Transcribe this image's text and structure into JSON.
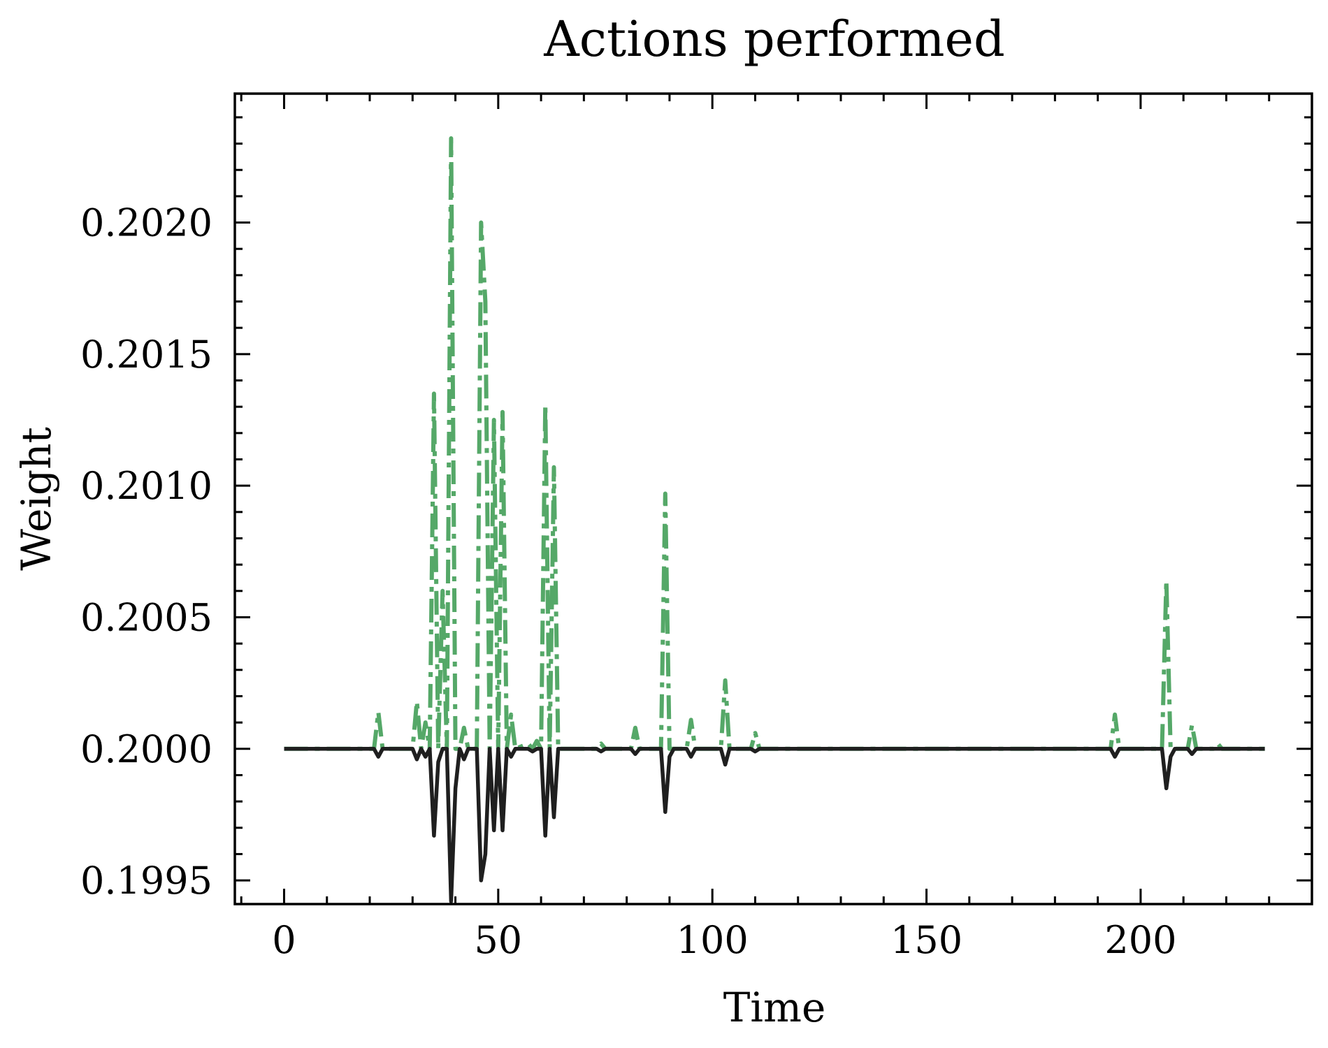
{
  "chart_data": {
    "type": "line",
    "title": "Actions performed",
    "xlabel": "Time",
    "ylabel": "Weight",
    "xlim": [
      -11.5,
      240
    ],
    "ylim": [
      0.19941,
      0.20249
    ],
    "x_ticks": [
      0,
      50,
      100,
      150,
      200
    ],
    "x_tick_labels": [
      "0",
      "50",
      "100",
      "150",
      "200"
    ],
    "x_minor_step": 10,
    "y_ticks": [
      0.1995,
      0.2,
      0.2005,
      0.201,
      0.2015,
      0.202
    ],
    "y_tick_labels": [
      "0.1995",
      "0.2000",
      "0.2005",
      "0.2010",
      "0.2015",
      "0.2020"
    ],
    "y_minor_step": 0.0001,
    "grid": false,
    "legend": false,
    "series": [
      {
        "color": "#55a868",
        "line_style": "dashdot",
        "points": [
          [
            0,
            0.2
          ],
          [
            21,
            0.2
          ],
          [
            22,
            0.20014
          ],
          [
            23,
            0.2
          ],
          [
            30,
            0.2
          ],
          [
            31,
            0.20018
          ],
          [
            32,
            0.2
          ],
          [
            33,
            0.2001
          ],
          [
            34,
            0.2
          ],
          [
            35,
            0.20135
          ],
          [
            36,
            0.2
          ],
          [
            37,
            0.2006
          ],
          [
            38,
            0.2
          ],
          [
            39,
            0.20232
          ],
          [
            40,
            0.2
          ],
          [
            41,
            0.2
          ],
          [
            42,
            0.20008
          ],
          [
            43,
            0.2
          ],
          [
            44,
            0.2
          ],
          [
            45,
            0.2
          ],
          [
            46,
            0.202
          ],
          [
            47,
            0.2017
          ],
          [
            48,
            0.2
          ],
          [
            49,
            0.20125
          ],
          [
            50,
            0.2
          ],
          [
            51,
            0.20128
          ],
          [
            52,
            0.2
          ],
          [
            53,
            0.20013
          ],
          [
            54,
            0.2
          ],
          [
            57,
            0.20002
          ],
          [
            58,
            0.2
          ],
          [
            59,
            0.20003
          ],
          [
            60,
            0.2
          ],
          [
            61,
            0.20131
          ],
          [
            62,
            0.2
          ],
          [
            63,
            0.20107
          ],
          [
            64,
            0.2
          ],
          [
            73,
            0.2
          ],
          [
            74,
            0.20002
          ],
          [
            75,
            0.2
          ],
          [
            81,
            0.2
          ],
          [
            82,
            0.20008
          ],
          [
            83,
            0.2
          ],
          [
            88,
            0.2
          ],
          [
            89,
            0.20097
          ],
          [
            90,
            0.2
          ],
          [
            94,
            0.2
          ],
          [
            95,
            0.20011
          ],
          [
            96,
            0.2
          ],
          [
            102,
            0.2
          ],
          [
            103,
            0.20026
          ],
          [
            104,
            0.2
          ],
          [
            109,
            0.2
          ],
          [
            110,
            0.20006
          ],
          [
            111,
            0.2
          ],
          [
            193,
            0.2
          ],
          [
            194,
            0.20013
          ],
          [
            195,
            0.2
          ],
          [
            205,
            0.2
          ],
          [
            206,
            0.20064
          ],
          [
            207,
            0.2
          ],
          [
            211,
            0.2
          ],
          [
            212,
            0.20009
          ],
          [
            213,
            0.2
          ],
          [
            217,
            0.2
          ],
          [
            218,
            0.20002
          ],
          [
            219,
            0.2
          ],
          [
            229,
            0.2
          ]
        ]
      },
      {
        "color": "#1f1f1f",
        "line_style": "solid",
        "points": [
          [
            0,
            0.2
          ],
          [
            21,
            0.2
          ],
          [
            22,
            0.19997
          ],
          [
            23,
            0.2
          ],
          [
            30,
            0.2
          ],
          [
            31,
            0.19996
          ],
          [
            32,
            0.2
          ],
          [
            33,
            0.19997
          ],
          [
            34,
            0.2
          ],
          [
            35,
            0.19967
          ],
          [
            36,
            0.19995
          ],
          [
            37,
            0.2
          ],
          [
            38,
            0.2
          ],
          [
            39,
            0.19942
          ],
          [
            40,
            0.19985
          ],
          [
            41,
            0.2
          ],
          [
            42,
            0.19996
          ],
          [
            43,
            0.2
          ],
          [
            44,
            0.2
          ],
          [
            45,
            0.2
          ],
          [
            46,
            0.1995
          ],
          [
            47,
            0.1996
          ],
          [
            48,
            0.2
          ],
          [
            49,
            0.19969
          ],
          [
            50,
            0.2
          ],
          [
            51,
            0.19969
          ],
          [
            52,
            0.2
          ],
          [
            53,
            0.19997
          ],
          [
            54,
            0.2
          ],
          [
            57,
            0.2
          ],
          [
            58,
            0.19999
          ],
          [
            59,
            0.2
          ],
          [
            60,
            0.2
          ],
          [
            61,
            0.19967
          ],
          [
            62,
            0.2
          ],
          [
            63,
            0.19974
          ],
          [
            64,
            0.2
          ],
          [
            73,
            0.2
          ],
          [
            74,
            0.19999
          ],
          [
            75,
            0.2
          ],
          [
            81,
            0.2
          ],
          [
            82,
            0.19998
          ],
          [
            83,
            0.2
          ],
          [
            88,
            0.2
          ],
          [
            89,
            0.19976
          ],
          [
            90,
            0.19997
          ],
          [
            91,
            0.2
          ],
          [
            94,
            0.2
          ],
          [
            95,
            0.19997
          ],
          [
            96,
            0.2
          ],
          [
            102,
            0.2
          ],
          [
            103,
            0.19994
          ],
          [
            104,
            0.2
          ],
          [
            109,
            0.2
          ],
          [
            110,
            0.19999
          ],
          [
            111,
            0.2
          ],
          [
            193,
            0.2
          ],
          [
            194,
            0.19997
          ],
          [
            195,
            0.2
          ],
          [
            205,
            0.2
          ],
          [
            206,
            0.19985
          ],
          [
            207,
            0.19997
          ],
          [
            208,
            0.2
          ],
          [
            211,
            0.2
          ],
          [
            212,
            0.19998
          ],
          [
            213,
            0.2
          ],
          [
            229,
            0.2
          ]
        ]
      }
    ]
  }
}
